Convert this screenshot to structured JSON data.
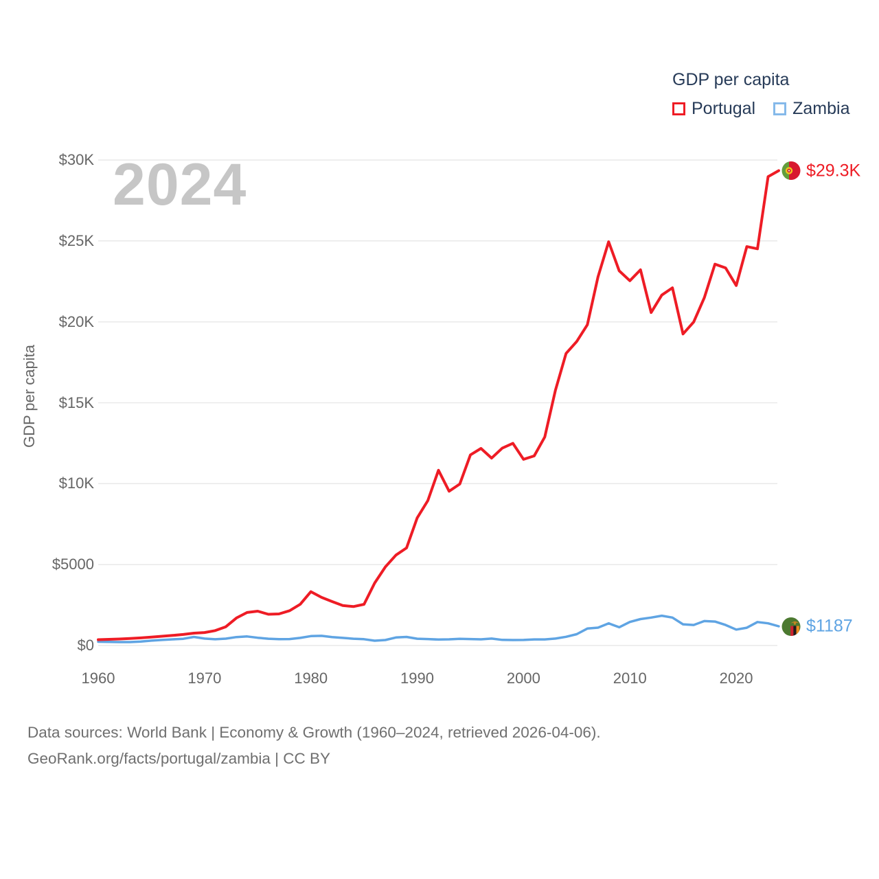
{
  "watermark": "2024",
  "legend": {
    "title": "GDP per capita",
    "items": [
      {
        "label": "Portugal",
        "swatch_color": "#ee1c25"
      },
      {
        "label": "Zambia",
        "swatch_color": "#85b9ea"
      }
    ]
  },
  "y_axis": {
    "title": "GDP per capita",
    "ticks": [
      {
        "label": "$0",
        "value": 0
      },
      {
        "label": "$5000",
        "value": 5000
      },
      {
        "label": "$10K",
        "value": 10000
      },
      {
        "label": "$15K",
        "value": 15000
      },
      {
        "label": "$20K",
        "value": 20000
      },
      {
        "label": "$25K",
        "value": 25000
      },
      {
        "label": "$30K",
        "value": 30000
      }
    ]
  },
  "x_axis": {
    "ticks": [
      {
        "label": "1960",
        "value": 1960
      },
      {
        "label": "1970",
        "value": 1970
      },
      {
        "label": "1980",
        "value": 1980
      },
      {
        "label": "1990",
        "value": 1990
      },
      {
        "label": "2000",
        "value": 2000
      },
      {
        "label": "2010",
        "value": 2010
      },
      {
        "label": "2020",
        "value": 2020
      }
    ]
  },
  "end_labels": [
    {
      "series": "Portugal",
      "text": "$29.3K",
      "color": "#ee1c25",
      "flag": "portugal-flag"
    },
    {
      "series": "Zambia",
      "text": "$1187",
      "color": "#5fa4e3",
      "flag": "zambia-flag"
    }
  ],
  "footer": {
    "line1": "Data sources: World Bank | Economy & Growth (1960–2024, retrieved 2026-04-06).",
    "line2": "GeoRank.org/facts/portugal/zambia | CC BY"
  },
  "chart_data": {
    "type": "line",
    "title": "GDP per capita",
    "ylabel": "GDP per capita",
    "xlabel": "",
    "grid": true,
    "legend_position": "top-right",
    "x_range": [
      1960,
      2024
    ],
    "ylim": [
      0,
      30000
    ],
    "years": [
      1960,
      1961,
      1962,
      1963,
      1964,
      1965,
      1966,
      1967,
      1968,
      1969,
      1970,
      1971,
      1972,
      1973,
      1974,
      1975,
      1976,
      1977,
      1978,
      1979,
      1980,
      1981,
      1982,
      1983,
      1984,
      1985,
      1986,
      1987,
      1988,
      1989,
      1990,
      1991,
      1992,
      1993,
      1994,
      1995,
      1996,
      1997,
      1998,
      1999,
      2000,
      2001,
      2002,
      2003,
      2004,
      2005,
      2006,
      2007,
      2008,
      2009,
      2010,
      2011,
      2012,
      2013,
      2014,
      2015,
      2016,
      2017,
      2018,
      2019,
      2020,
      2021,
      2022,
      2023,
      2024
    ],
    "series": [
      {
        "name": "Portugal",
        "color": "#ee1c25",
        "end_label": "$29.3K",
        "values": [
          360,
          381,
          402,
          432,
          473,
          522,
          571,
          625,
          683,
          762,
          800,
          920,
          1160,
          1700,
          2040,
          2120,
          1930,
          1950,
          2150,
          2550,
          3325,
          2975,
          2715,
          2475,
          2405,
          2545,
          3860,
          4854,
          5587,
          6031,
          7885,
          8952,
          10827,
          9533,
          9978,
          11781,
          12180,
          11582,
          12197,
          12492,
          11502,
          11715,
          12886,
          15772,
          18047,
          18785,
          19821,
          22780,
          24950,
          23152,
          22539,
          23214,
          20577,
          21653,
          22104,
          19250,
          19990,
          21490,
          23563,
          23333,
          22242,
          24651,
          24515,
          28970,
          29341
        ]
      },
      {
        "name": "Zambia",
        "color": "#5fa4e3",
        "end_label": "$1187",
        "values": [
          232,
          220,
          212,
          213,
          247,
          303,
          343,
          380,
          416,
          532,
          427,
          388,
          425,
          524,
          560,
          480,
          420,
          390,
          400,
          470,
          580,
          600,
          520,
          470,
          420,
          390,
          295,
          340,
          497,
          530,
          420,
          400,
          370,
          380,
          410,
          400,
          380,
          430,
          350,
          340,
          345,
          378,
          377,
          430,
          538,
          702,
          1047,
          1105,
          1369,
          1130,
          1456,
          1635,
          1725,
          1840,
          1725,
          1310,
          1270,
          1510,
          1480,
          1270,
          985,
          1100,
          1450,
          1370,
          1187
        ]
      }
    ]
  }
}
